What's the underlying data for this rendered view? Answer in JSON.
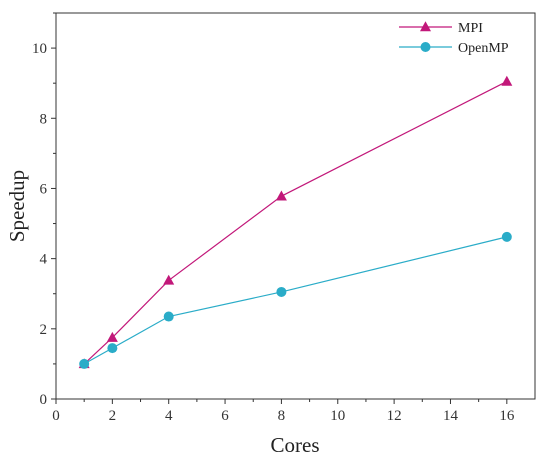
{
  "chart_data": {
    "type": "line",
    "title": "",
    "xlabel": "Cores",
    "ylabel": "Speedup",
    "xlim": [
      0,
      17
    ],
    "ylim": [
      0,
      11
    ],
    "xticks": [
      0,
      2,
      4,
      6,
      8,
      10,
      12,
      14,
      16
    ],
    "yticks": [
      0,
      2,
      4,
      6,
      8,
      10
    ],
    "grid": false,
    "legend_position": "top-right",
    "series": [
      {
        "name": "MPI",
        "marker": "triangle",
        "color": "#C2187A",
        "x": [
          1,
          2,
          4,
          8,
          16
        ],
        "y": [
          1.0,
          1.75,
          3.38,
          5.78,
          9.05
        ]
      },
      {
        "name": "OpenMP",
        "marker": "circle",
        "color": "#2AACC8",
        "x": [
          1,
          2,
          4,
          8,
          16
        ],
        "y": [
          1.0,
          1.45,
          2.35,
          3.05,
          4.62
        ]
      }
    ]
  }
}
